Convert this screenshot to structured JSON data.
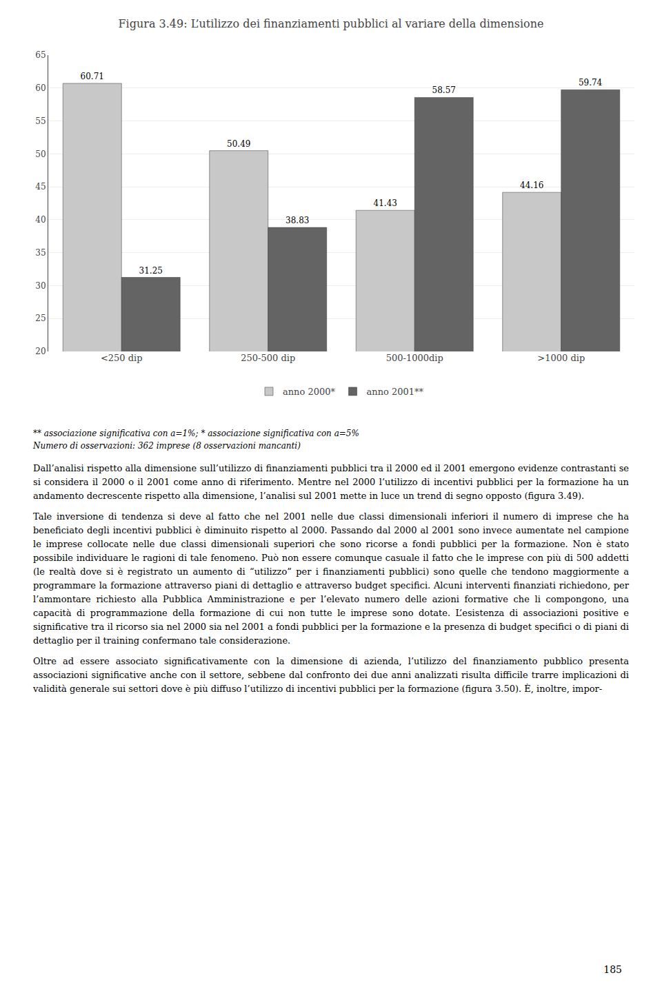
{
  "chart_data": {
    "type": "bar",
    "title": "Figura 3.49: L’utilizzo dei finanziamenti pubblici al variare della dimensione",
    "categories": [
      "<250 dip",
      "250-500 dip",
      "500-1000dip",
      ">1000 dip"
    ],
    "series": [
      {
        "name": "anno 2000*",
        "color": "#c8c8c8",
        "values": [
          60.71,
          50.49,
          41.43,
          44.16
        ]
      },
      {
        "name": "anno 2001**",
        "color": "#646464",
        "values": [
          31.25,
          38.83,
          58.57,
          59.74
        ]
      }
    ],
    "ylim": [
      20,
      65
    ],
    "yticks": [
      20,
      25,
      30,
      35,
      40,
      45,
      50,
      55,
      60,
      65
    ],
    "grid": true,
    "legend": "bottom",
    "data_labels": true,
    "annotations": [
      "** associazione significativa con a=1%; * associazione significativa con a=5%",
      "Numero di osservazioni: 362 imprese (8 osservazioni mancanti)",
      "Dall’analisi rispetto alla dimensione sull’utilizzo di finanziamenti pubblici tra il 2000 ed il 2001 emergono evidenze contrastanti se si considera il 2000 o il 2001 come anno di riferimento. Mentre nel 2000 l’utilizzo di incentivi pubblici per la formazione ha un andamento decrescente rispetto alla dimensione, l’analisi sul 2001 mette in luce un trend di segno opposto (figura 3.49).",
      "Tale inversione di tendenza si deve al fatto che nel 2001 nelle due classi dimensionali inferiori il numero di imprese che ha beneficiato degli incentivi pubblici è diminuito rispetto al 2000. Passando dal 2000 al 2001 sono invece aumentate nel campione le imprese collocate nelle due classi dimensionali superiori che sono ricorse a fondi pubblici per la formazione. Non è stato possibile individuare le ragioni di tale fenomeno. Può non essere comunque casuale il fatto che le imprese con più di 500 addetti (le realtà dove si è registrato un aumento di “utilizzo” per i finanziamenti pubblici) sono quelle che tendono maggiormente a programmare la formazione attraverso piani di dettaglio e attraverso budget specifici. Alcuni interventi finanziati richiedono, per l’ammontare richiesto alla Pubblica Amministrazione e per l’elevato numero delle azioni formative che li compongono, una capacità di programmazione della formazione di cui non tutte le imprese sono dotate. L’esistenza di associazioni positive e significative tra il ricorso sia nel 2000 sia nel 2001 a fondi pubblici per la formazione e la presenza di budget specifici o di piani di dettaglio per il training confermano tale considerazione.",
      "Oltre ad essere associato significativamente con la dimensione di azienda, l’utilizzo del finanziamento pubblico presenta associazioni significative anche con il settore, sebbene dal confronto dei due anni analizzati risulta difficile trarre implicazioni di validità generale sui settori dove è più diffuso l’utilizzo di incentivi pubblici per la formazione (figura 3.50). È, inoltre, impor-",
      "185"
    ]
  }
}
